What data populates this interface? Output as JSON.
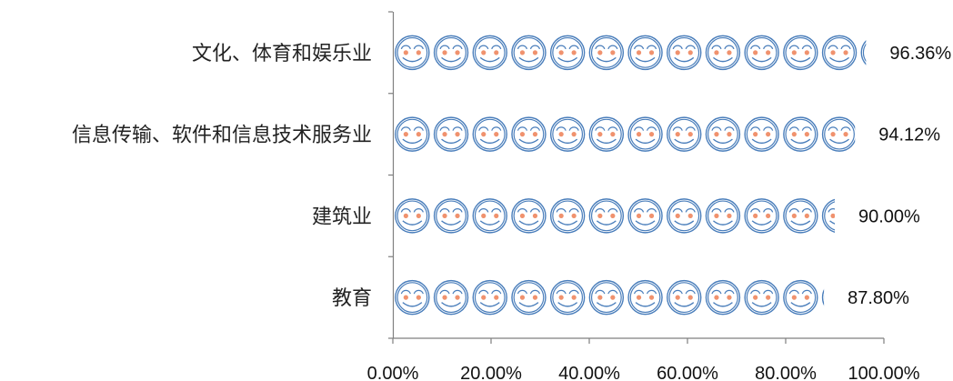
{
  "chart_data": {
    "type": "bar",
    "orientation": "horizontal",
    "title": "",
    "xlabel": "",
    "ylabel": "",
    "categories": [
      "文化、体育和娱乐业",
      "信息传输、软件和信息技术服务业",
      "建筑业",
      "教育"
    ],
    "values": [
      96.36,
      94.12,
      90.0,
      87.8
    ],
    "value_labels": [
      "96.36%",
      "94.12%",
      "90.00%",
      "87.80%"
    ],
    "x_ticks": [
      0,
      20,
      40,
      60,
      80,
      100
    ],
    "x_tick_labels": [
      "0.00%",
      "20.00%",
      "40.00%",
      "60.00%",
      "80.00%",
      "100.00%"
    ],
    "xlim": [
      0,
      100
    ],
    "grid": false,
    "legend": "none",
    "bar_style": "smiley-face pictograph",
    "colors": {
      "face_outline": "#4a7ebb",
      "cheeks": "#f0926e",
      "axis": "#7f7f7f",
      "text": "#222222"
    }
  }
}
